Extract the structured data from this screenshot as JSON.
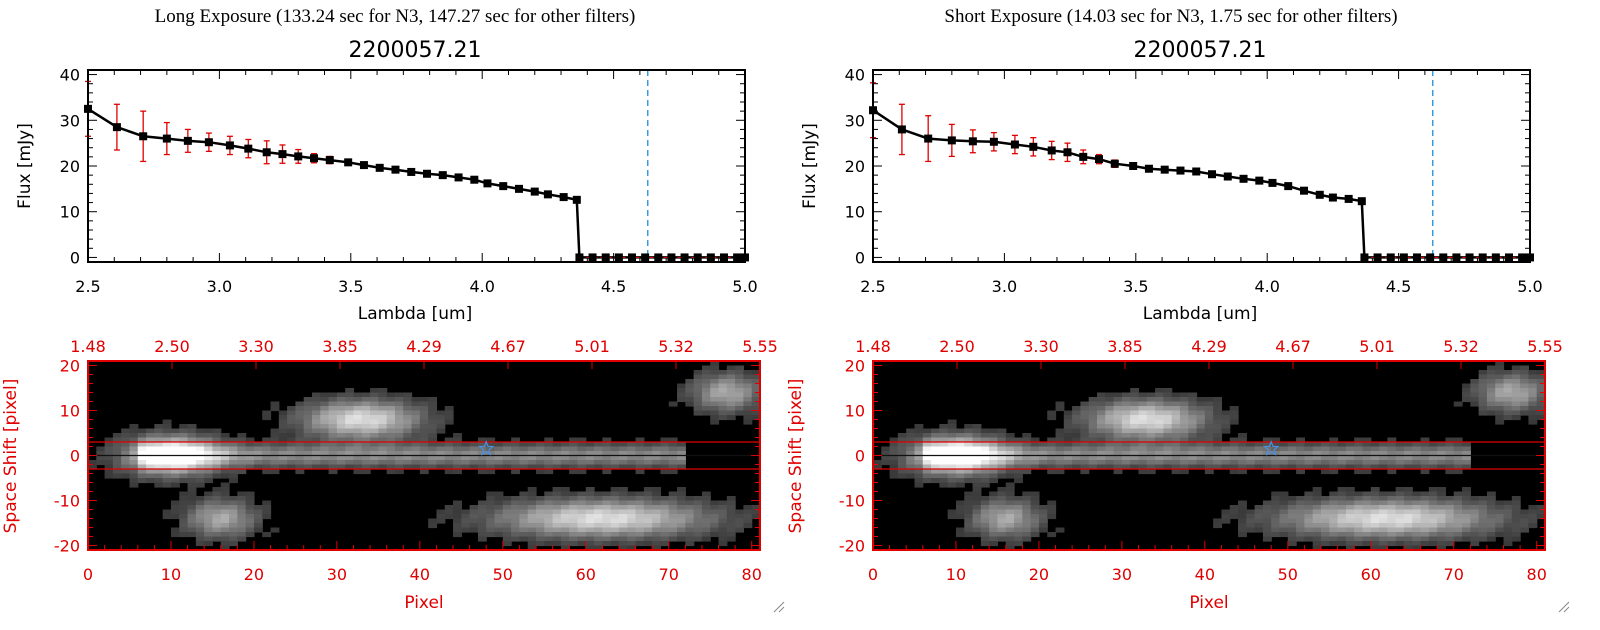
{
  "colors": {
    "flux": "#000000",
    "errorbar": "#e00000",
    "cutoff": "#1a8fd6",
    "image_axis": "#e00000",
    "star": "#4a90e2"
  },
  "panels": [
    {
      "header": "Long Exposure (133.24 sec for N3, 147.27 sec for other filters)",
      "spectrum": {
        "title": "2200057.21",
        "xlabel": "Lambda [um]",
        "ylabel": "Flux [mJy]",
        "xlim": [
          2.5,
          5.0
        ],
        "ylim": [
          -1,
          41
        ],
        "xticks": [
          "2.5",
          "3.0",
          "3.5",
          "4.0",
          "4.5",
          "5.0"
        ],
        "yticks": [
          "0",
          "10",
          "20",
          "30",
          "40"
        ],
        "cutoff": 4.63
      },
      "image": {
        "xlabel": "Pixel",
        "ylabel": "Space Shift [pixel]",
        "xticks": [
          "0",
          "10",
          "20",
          "30",
          "40",
          "50",
          "60",
          "70",
          "80"
        ],
        "yticks": [
          "20",
          "10",
          "0",
          "-10",
          "-20"
        ],
        "top_ticks": [
          "1.48",
          "2.50",
          "3.30",
          "3.85",
          "4.29",
          "4.67",
          "5.01",
          "5.32",
          "5.55"
        ],
        "star_pixel": [
          48,
          1.5
        ]
      }
    },
    {
      "header": "Short Exposure (14.03 sec for N3, 1.75 sec for other filters)",
      "spectrum": {
        "title": "2200057.21",
        "xlabel": "Lambda [um]",
        "ylabel": "Flux [mJy]",
        "xlim": [
          2.5,
          5.0
        ],
        "ylim": [
          -1,
          41
        ],
        "xticks": [
          "2.5",
          "3.0",
          "3.5",
          "4.0",
          "4.5",
          "5.0"
        ],
        "yticks": [
          "0",
          "10",
          "20",
          "30",
          "40"
        ],
        "cutoff": 4.63
      },
      "image": {
        "xlabel": "Pixel",
        "ylabel": "Space Shift [pixel]",
        "xticks": [
          "0",
          "10",
          "20",
          "30",
          "40",
          "50",
          "60",
          "70",
          "80"
        ],
        "yticks": [
          "20",
          "10",
          "0",
          "-10",
          "-20"
        ],
        "top_ticks": [
          "1.48",
          "2.50",
          "3.30",
          "3.85",
          "4.29",
          "4.67",
          "5.01",
          "5.32",
          "5.55"
        ],
        "star_pixel": [
          48,
          1.5
        ]
      }
    }
  ],
  "chart_data": [
    {
      "type": "line",
      "panel": "long",
      "title": "2200057.21",
      "xlabel": "Lambda [um]",
      "ylabel": "Flux [mJy]",
      "xlim": [
        2.5,
        5.0
      ],
      "ylim": [
        -1,
        41
      ],
      "x": [
        2.5,
        2.61,
        2.71,
        2.8,
        2.88,
        2.96,
        3.04,
        3.11,
        3.18,
        3.24,
        3.3,
        3.36,
        3.42,
        3.49,
        3.55,
        3.61,
        3.67,
        3.73,
        3.79,
        3.85,
        3.91,
        3.97,
        4.02,
        4.08,
        4.14,
        4.2,
        4.25,
        4.31,
        4.36,
        4.37,
        4.42,
        4.47,
        4.52,
        4.57,
        4.62,
        4.67,
        4.72,
        4.77,
        4.82,
        4.87,
        4.92,
        4.97,
        5.0
      ],
      "y": [
        32.5,
        28.5,
        26.5,
        26.0,
        25.5,
        25.2,
        24.5,
        23.8,
        23.0,
        22.6,
        22.1,
        21.7,
        21.3,
        20.8,
        20.2,
        19.6,
        19.2,
        18.7,
        18.3,
        18.0,
        17.5,
        17.0,
        16.2,
        15.6,
        15.0,
        14.4,
        13.8,
        13.2,
        12.6,
        0,
        0,
        0,
        0,
        0,
        0,
        0,
        0,
        0,
        0,
        0,
        0,
        0,
        0
      ],
      "yerr": [
        6,
        5,
        5.5,
        3.5,
        2.5,
        2,
        2,
        2,
        2.5,
        2,
        1.5,
        1,
        0.8,
        0.6,
        0.5,
        0.5,
        0.4,
        0.4,
        0.4,
        0.4,
        0.4,
        0.4,
        0.4,
        0.4,
        0.4,
        0.4,
        0.4,
        0.4,
        0.4,
        0,
        0,
        0,
        0,
        0,
        0,
        0,
        0,
        0,
        0,
        0,
        0,
        0,
        0
      ]
    },
    {
      "type": "line",
      "panel": "short",
      "title": "2200057.21",
      "xlabel": "Lambda [um]",
      "ylabel": "Flux [mJy]",
      "xlim": [
        2.5,
        5.0
      ],
      "ylim": [
        -1,
        41
      ],
      "x": [
        2.5,
        2.61,
        2.71,
        2.8,
        2.88,
        2.96,
        3.04,
        3.11,
        3.18,
        3.24,
        3.3,
        3.36,
        3.42,
        3.49,
        3.55,
        3.61,
        3.67,
        3.73,
        3.79,
        3.85,
        3.91,
        3.97,
        4.02,
        4.08,
        4.14,
        4.2,
        4.25,
        4.31,
        4.36,
        4.37,
        4.42,
        4.47,
        4.52,
        4.57,
        4.62,
        4.67,
        4.72,
        4.77,
        4.82,
        4.87,
        4.92,
        4.97,
        5.0
      ],
      "y": [
        32.2,
        28.0,
        26.0,
        25.6,
        25.4,
        25.3,
        24.7,
        24.2,
        23.4,
        23.0,
        22.0,
        21.5,
        20.5,
        20.0,
        19.4,
        19.2,
        19.0,
        18.8,
        18.2,
        17.7,
        17.2,
        16.8,
        16.3,
        15.6,
        14.6,
        13.7,
        13.1,
        12.8,
        12.3,
        0,
        0,
        0,
        0,
        0,
        0,
        0,
        0,
        0,
        0,
        0,
        0,
        0,
        0
      ],
      "yerr": [
        6,
        5.5,
        5,
        3.5,
        2.5,
        2,
        2,
        2,
        2,
        2,
        1.5,
        1,
        0.8,
        0.6,
        0.5,
        0.5,
        0.4,
        0.4,
        0.4,
        0.4,
        0.4,
        0.4,
        0.4,
        0.4,
        0.4,
        0.4,
        0.4,
        0.4,
        0.4,
        0,
        0,
        0,
        0,
        0,
        0,
        0,
        0,
        0,
        0,
        0,
        0,
        0,
        0
      ]
    },
    {
      "type": "heatmap",
      "panel": "long",
      "xlabel": "Pixel",
      "ylabel": "Space Shift [pixel]",
      "xlim": [
        0,
        81
      ],
      "ylim": [
        -21,
        21
      ],
      "sources": [
        {
          "x": 10,
          "y": 0,
          "sx": 4,
          "sy": 3,
          "amp": 1.0
        },
        {
          "x": 33,
          "y": 8,
          "sx": 5,
          "sy": 3,
          "amp": 0.85
        },
        {
          "x": 62,
          "y": -14,
          "sx": 9,
          "sy": 3,
          "amp": 0.85
        },
        {
          "x": 16,
          "y": -14,
          "sx": 3,
          "sy": 3,
          "amp": 0.6
        },
        {
          "x": 77,
          "y": 14,
          "sx": 3,
          "sy": 3,
          "amp": 0.6
        }
      ]
    },
    {
      "type": "heatmap",
      "panel": "short",
      "xlabel": "Pixel",
      "ylabel": "Space Shift [pixel]",
      "xlim": [
        0,
        81
      ],
      "ylim": [
        -21,
        21
      ],
      "sources": [
        {
          "x": 10,
          "y": 0,
          "sx": 4,
          "sy": 3,
          "amp": 1.0
        },
        {
          "x": 33,
          "y": 8,
          "sx": 5,
          "sy": 3,
          "amp": 0.85
        },
        {
          "x": 62,
          "y": -14,
          "sx": 9,
          "sy": 3,
          "amp": 0.85
        },
        {
          "x": 16,
          "y": -14,
          "sx": 3,
          "sy": 3,
          "amp": 0.6
        },
        {
          "x": 77,
          "y": 14,
          "sx": 3,
          "sy": 3,
          "amp": 0.6
        }
      ]
    }
  ]
}
